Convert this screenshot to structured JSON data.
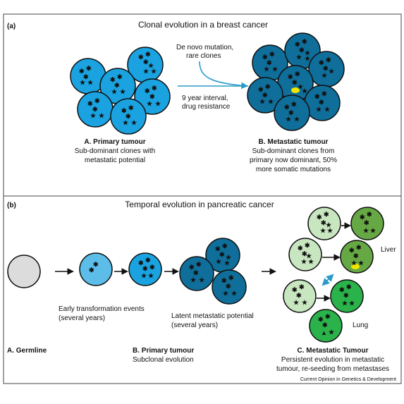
{
  "frame_color": "#444444",
  "panel_a": {
    "label": "(a)",
    "title": "Clonal evolution in a breast cancer",
    "mutation_note_1": "De novo mutation,",
    "mutation_note_2": "rare clones",
    "interval_note_1": "9 year interval,",
    "interval_note_2": "drug resistance",
    "primary_heading": "A. Primary tumour",
    "primary_desc_1": "Sub-dominant clones with",
    "primary_desc_2": "metastatic potential",
    "meta_heading": "B. Metastatic tumour",
    "meta_desc_1": "Sub-dominant clones from",
    "meta_desc_2": "primary now dominant, 50%",
    "meta_desc_3": "more somatic mutations"
  },
  "panel_b": {
    "label": "(b)",
    "title": "Temporal evolution in pancreatic cancer",
    "early_1": "Early transformation events",
    "early_2": "(several years)",
    "latent_1": "Latent  metastatic potential",
    "latent_2": "(several years)",
    "germline_heading": "A. Germline",
    "primary_heading": "B. Primary tumour",
    "primary_desc": "Subclonal evolution",
    "meta_heading": "C. Metastatic Tumour",
    "meta_desc_1": "Persistent evolution in metastatic",
    "meta_desc_2": "tumour, re-seeding from metastases",
    "liver_label": "Liver",
    "lung_label": "Lung"
  },
  "credit": "Current Opinion in Genetics & Development",
  "colors": {
    "primary_cell": "#1aa3e0",
    "metastatic_cell": "#0f6e9a",
    "germline_cell": "#dcdcdc",
    "early_cell": "#5bbde8",
    "pale_green_cell": "#c8e6bf",
    "mid_green_cell": "#66a844",
    "bright_green_cell": "#2ab34a",
    "arrow_teal": "#2a9bc8",
    "star_red": "#e8472a",
    "star_purple": "#8a3fb0",
    "star_orange": "#f5a01a",
    "star_green": "#2cae4a",
    "blob_yellow": "#f2e600"
  }
}
